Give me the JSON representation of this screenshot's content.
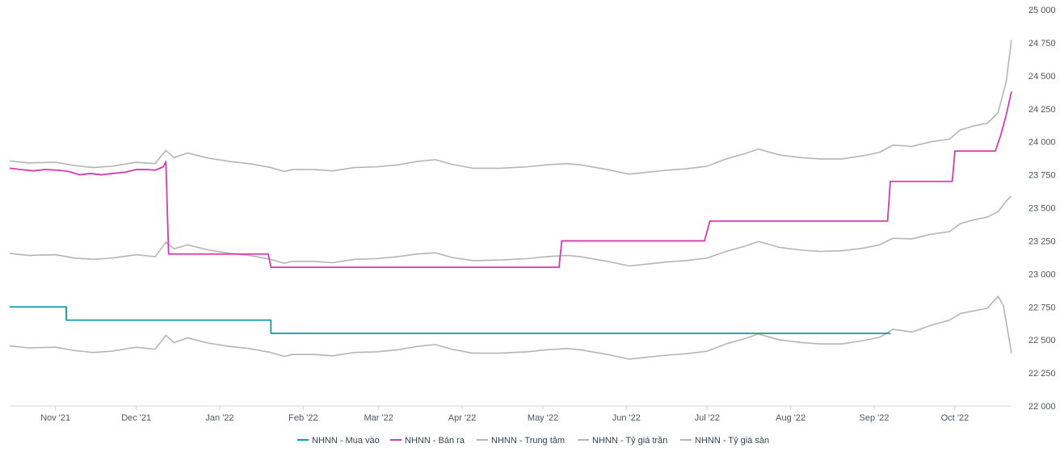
{
  "chart_data": {
    "type": "line",
    "title": "",
    "xlabel": "",
    "ylabel": "",
    "ylim": [
      22000,
      25000
    ],
    "y_ticks": [
      22000,
      22250,
      22500,
      22750,
      23000,
      23250,
      23500,
      23750,
      24000,
      24250,
      24500,
      24750,
      25000
    ],
    "y_tick_labels": [
      "22 000",
      "22 250",
      "22 500",
      "22 750",
      "23 000",
      "23 250",
      "23 500",
      "23 750",
      "24 000",
      "24 250",
      "24 500",
      "24 750",
      "25 000"
    ],
    "y_axis_position": "right",
    "xlim": [
      "2021-10-15",
      "2022-10-22"
    ],
    "x_ticks": [
      "2021-11-01",
      "2021-12-01",
      "2022-01-01",
      "2022-02-01",
      "2022-03-01",
      "2022-04-01",
      "2022-05-01",
      "2022-06-01",
      "2022-07-01",
      "2022-08-01",
      "2022-09-01",
      "2022-10-01"
    ],
    "x_tick_labels": [
      "Nov '21",
      "Dec '21",
      "Jan '22",
      "Feb '22",
      "Mar '22",
      "Apr '22",
      "May '22",
      "Jun '22",
      "Jul '22",
      "Aug '22",
      "Sep '22",
      "Oct '22"
    ],
    "grid": false,
    "legend_position": "bottom-center",
    "series": [
      {
        "name": "NHNN - Mua vào",
        "color": "#0e9aa7",
        "step": true,
        "points": [
          [
            "2021-10-15",
            22750
          ],
          [
            "2021-11-05",
            22650
          ],
          [
            "2022-01-20",
            22550
          ],
          [
            "2022-09-07",
            22550
          ]
        ]
      },
      {
        "name": "NHNN - Bán ra",
        "color": "#d63aaf",
        "step": false,
        "points": [
          [
            "2021-10-15",
            23800
          ],
          [
            "2021-10-19",
            23790
          ],
          [
            "2021-10-24",
            23780
          ],
          [
            "2021-10-28",
            23790
          ],
          [
            "2021-11-02",
            23785
          ],
          [
            "2021-11-06",
            23775
          ],
          [
            "2021-11-10",
            23750
          ],
          [
            "2021-11-14",
            23760
          ],
          [
            "2021-11-18",
            23750
          ],
          [
            "2021-11-22",
            23760
          ],
          [
            "2021-11-27",
            23770
          ],
          [
            "2021-12-01",
            23790
          ],
          [
            "2021-12-05",
            23790
          ],
          [
            "2021-12-08",
            23785
          ],
          [
            "2021-12-11",
            23810
          ],
          [
            "2021-12-12",
            23850
          ],
          [
            "2021-12-13",
            23150
          ],
          [
            "2022-01-19",
            23150
          ],
          [
            "2022-01-20",
            23050
          ],
          [
            "2022-05-07",
            23050
          ],
          [
            "2022-05-08",
            23250
          ],
          [
            "2022-06-30",
            23250
          ],
          [
            "2022-07-02",
            23400
          ],
          [
            "2022-09-06",
            23400
          ],
          [
            "2022-09-07",
            23700
          ],
          [
            "2022-09-30",
            23700
          ],
          [
            "2022-10-01",
            23930
          ],
          [
            "2022-10-16",
            23930
          ],
          [
            "2022-10-18",
            24050
          ],
          [
            "2022-10-20",
            24200
          ],
          [
            "2022-10-22",
            24380
          ]
        ]
      },
      {
        "name": "NHNN - Trung tâm",
        "color": "#b5b5b5",
        "step": false,
        "points": [
          [
            "2021-10-15",
            23155
          ],
          [
            "2021-10-22",
            23140
          ],
          [
            "2021-11-01",
            23145
          ],
          [
            "2021-11-08",
            23120
          ],
          [
            "2021-11-15",
            23110
          ],
          [
            "2021-11-22",
            23120
          ],
          [
            "2021-12-01",
            23145
          ],
          [
            "2021-12-08",
            23130
          ],
          [
            "2021-12-12",
            23240
          ],
          [
            "2021-12-15",
            23190
          ],
          [
            "2021-12-20",
            23220
          ],
          [
            "2021-12-28",
            23180
          ],
          [
            "2022-01-05",
            23155
          ],
          [
            "2022-01-12",
            23140
          ],
          [
            "2022-01-20",
            23110
          ],
          [
            "2022-01-25",
            23080
          ],
          [
            "2022-01-28",
            23095
          ],
          [
            "2022-02-05",
            23095
          ],
          [
            "2022-02-12",
            23085
          ],
          [
            "2022-02-20",
            23110
          ],
          [
            "2022-02-28",
            23115
          ],
          [
            "2022-03-08",
            23130
          ],
          [
            "2022-03-15",
            23150
          ],
          [
            "2022-03-22",
            23160
          ],
          [
            "2022-03-28",
            23125
          ],
          [
            "2022-04-05",
            23100
          ],
          [
            "2022-04-15",
            23105
          ],
          [
            "2022-04-25",
            23115
          ],
          [
            "2022-05-02",
            23130
          ],
          [
            "2022-05-10",
            23140
          ],
          [
            "2022-05-15",
            23130
          ],
          [
            "2022-05-25",
            23095
          ],
          [
            "2022-06-02",
            23060
          ],
          [
            "2022-06-09",
            23075
          ],
          [
            "2022-06-16",
            23090
          ],
          [
            "2022-06-23",
            23100
          ],
          [
            "2022-07-01",
            23120
          ],
          [
            "2022-07-08",
            23170
          ],
          [
            "2022-07-15",
            23210
          ],
          [
            "2022-07-20",
            23245
          ],
          [
            "2022-07-28",
            23200
          ],
          [
            "2022-08-05",
            23180
          ],
          [
            "2022-08-12",
            23170
          ],
          [
            "2022-08-20",
            23175
          ],
          [
            "2022-08-28",
            23195
          ],
          [
            "2022-09-03",
            23220
          ],
          [
            "2022-09-08",
            23270
          ],
          [
            "2022-09-15",
            23265
          ],
          [
            "2022-09-22",
            23300
          ],
          [
            "2022-09-29",
            23320
          ],
          [
            "2022-10-03",
            23380
          ],
          [
            "2022-10-08",
            23410
          ],
          [
            "2022-10-13",
            23430
          ],
          [
            "2022-10-17",
            23470
          ],
          [
            "2022-10-20",
            23550
          ],
          [
            "2022-10-22",
            23590
          ]
        ]
      },
      {
        "name": "NHNN - Tỷ giá trần",
        "color": "#b5b5b5",
        "step": false,
        "points": [
          [
            "2021-10-15",
            23855
          ],
          [
            "2021-10-22",
            23840
          ],
          [
            "2021-11-01",
            23845
          ],
          [
            "2021-11-08",
            23820
          ],
          [
            "2021-11-15",
            23805
          ],
          [
            "2021-11-22",
            23815
          ],
          [
            "2021-12-01",
            23845
          ],
          [
            "2021-12-08",
            23835
          ],
          [
            "2021-12-12",
            23935
          ],
          [
            "2021-12-15",
            23880
          ],
          [
            "2021-12-20",
            23915
          ],
          [
            "2021-12-28",
            23875
          ],
          [
            "2022-01-05",
            23850
          ],
          [
            "2022-01-12",
            23835
          ],
          [
            "2022-01-20",
            23805
          ],
          [
            "2022-01-25",
            23775
          ],
          [
            "2022-01-28",
            23790
          ],
          [
            "2022-02-05",
            23790
          ],
          [
            "2022-02-12",
            23780
          ],
          [
            "2022-02-20",
            23805
          ],
          [
            "2022-02-28",
            23810
          ],
          [
            "2022-03-08",
            23825
          ],
          [
            "2022-03-15",
            23850
          ],
          [
            "2022-03-22",
            23865
          ],
          [
            "2022-03-28",
            23830
          ],
          [
            "2022-04-05",
            23800
          ],
          [
            "2022-04-15",
            23800
          ],
          [
            "2022-04-25",
            23810
          ],
          [
            "2022-05-02",
            23825
          ],
          [
            "2022-05-10",
            23835
          ],
          [
            "2022-05-15",
            23825
          ],
          [
            "2022-05-25",
            23790
          ],
          [
            "2022-06-02",
            23755
          ],
          [
            "2022-06-09",
            23770
          ],
          [
            "2022-06-16",
            23785
          ],
          [
            "2022-06-23",
            23795
          ],
          [
            "2022-07-01",
            23815
          ],
          [
            "2022-07-08",
            23870
          ],
          [
            "2022-07-15",
            23910
          ],
          [
            "2022-07-20",
            23945
          ],
          [
            "2022-07-28",
            23900
          ],
          [
            "2022-08-05",
            23880
          ],
          [
            "2022-08-12",
            23870
          ],
          [
            "2022-08-20",
            23870
          ],
          [
            "2022-08-28",
            23895
          ],
          [
            "2022-09-03",
            23920
          ],
          [
            "2022-09-08",
            23975
          ],
          [
            "2022-09-15",
            23965
          ],
          [
            "2022-09-22",
            24000
          ],
          [
            "2022-09-29",
            24020
          ],
          [
            "2022-10-03",
            24090
          ],
          [
            "2022-10-08",
            24120
          ],
          [
            "2022-10-13",
            24140
          ],
          [
            "2022-10-17",
            24220
          ],
          [
            "2022-10-20",
            24450
          ],
          [
            "2022-10-22",
            24770
          ]
        ]
      },
      {
        "name": "NHNN - Tỷ giá sàn",
        "color": "#b5b5b5",
        "step": false,
        "points": [
          [
            "2021-10-15",
            22455
          ],
          [
            "2021-10-22",
            22440
          ],
          [
            "2021-11-01",
            22445
          ],
          [
            "2021-11-08",
            22420
          ],
          [
            "2021-11-15",
            22405
          ],
          [
            "2021-11-22",
            22415
          ],
          [
            "2021-12-01",
            22445
          ],
          [
            "2021-12-08",
            22430
          ],
          [
            "2021-12-12",
            22535
          ],
          [
            "2021-12-15",
            22480
          ],
          [
            "2021-12-20",
            22515
          ],
          [
            "2021-12-28",
            22475
          ],
          [
            "2022-01-05",
            22450
          ],
          [
            "2022-01-12",
            22435
          ],
          [
            "2022-01-20",
            22405
          ],
          [
            "2022-01-25",
            22375
          ],
          [
            "2022-01-28",
            22390
          ],
          [
            "2022-02-05",
            22390
          ],
          [
            "2022-02-12",
            22380
          ],
          [
            "2022-02-20",
            22405
          ],
          [
            "2022-02-28",
            22410
          ],
          [
            "2022-03-08",
            22425
          ],
          [
            "2022-03-15",
            22450
          ],
          [
            "2022-03-22",
            22465
          ],
          [
            "2022-03-28",
            22430
          ],
          [
            "2022-04-05",
            22400
          ],
          [
            "2022-04-15",
            22400
          ],
          [
            "2022-04-25",
            22410
          ],
          [
            "2022-05-02",
            22425
          ],
          [
            "2022-05-10",
            22435
          ],
          [
            "2022-05-15",
            22425
          ],
          [
            "2022-05-25",
            22390
          ],
          [
            "2022-06-02",
            22355
          ],
          [
            "2022-06-09",
            22370
          ],
          [
            "2022-06-16",
            22385
          ],
          [
            "2022-06-23",
            22395
          ],
          [
            "2022-07-01",
            22415
          ],
          [
            "2022-07-08",
            22470
          ],
          [
            "2022-07-15",
            22510
          ],
          [
            "2022-07-20",
            22545
          ],
          [
            "2022-07-28",
            22500
          ],
          [
            "2022-08-05",
            22480
          ],
          [
            "2022-08-12",
            22470
          ],
          [
            "2022-08-20",
            22470
          ],
          [
            "2022-08-28",
            22495
          ],
          [
            "2022-09-03",
            22520
          ],
          [
            "2022-09-08",
            22580
          ],
          [
            "2022-09-15",
            22560
          ],
          [
            "2022-09-22",
            22610
          ],
          [
            "2022-09-29",
            22650
          ],
          [
            "2022-10-03",
            22700
          ],
          [
            "2022-10-08",
            22720
          ],
          [
            "2022-10-13",
            22740
          ],
          [
            "2022-10-17",
            22830
          ],
          [
            "2022-10-19",
            22760
          ],
          [
            "2022-10-22",
            22400
          ]
        ]
      }
    ]
  }
}
